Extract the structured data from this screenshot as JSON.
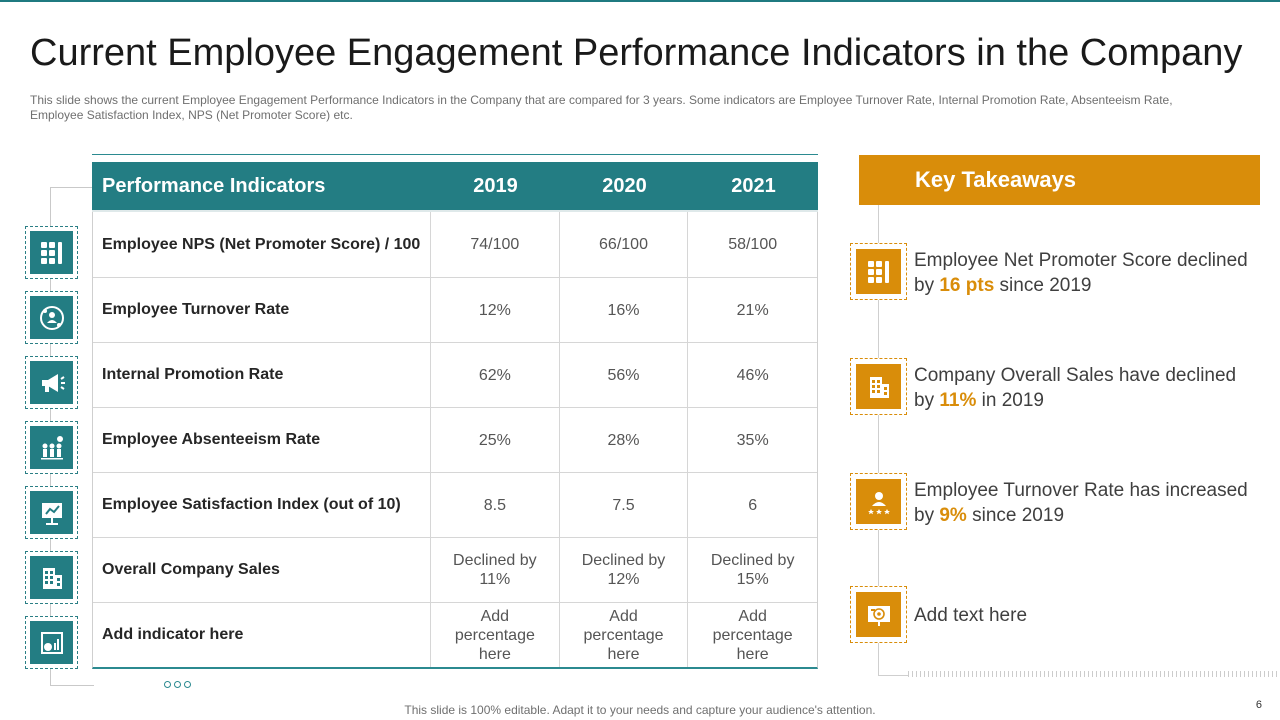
{
  "title": "Current Employee Engagement Performance Indicators in the Company",
  "subtitle": "This slide shows the current Employee Engagement Performance  Indicators in the Company that are compared for 3 years. Some indicators are Employee Turnover  Rate, Internal Promotion Rate, Absenteeism Rate, Employee Satisfaction Index, NPS (Net Promoter Score) etc.",
  "table": {
    "headers": [
      "Performance Indicators",
      "2019",
      "2020",
      "2021"
    ],
    "rows": [
      {
        "label": "Employee NPS (Net Promoter Score) / 100",
        "v2019": "74/100",
        "v2020": "66/100",
        "v2021": "58/100"
      },
      {
        "label": "Employee Turnover Rate",
        "v2019": "12%",
        "v2020": "16%",
        "v2021": "21%"
      },
      {
        "label": "Internal Promotion Rate",
        "v2019": "62%",
        "v2020": "56%",
        "v2021": "46%"
      },
      {
        "label": "Employee Absenteeism Rate",
        "v2019": "25%",
        "v2020": "28%",
        "v2021": "35%"
      },
      {
        "label": "Employee Satisfaction Index (out of 10)",
        "v2019": "8.5",
        "v2020": "7.5",
        "v2021": "6"
      },
      {
        "label": "Overall Company Sales",
        "v2019": "Declined by 11%",
        "v2020": "Declined by 12%",
        "v2021": "Declined by 15%"
      },
      {
        "label": "Add indicator here",
        "v2019": "Add percentage here",
        "v2020": "Add percentage here",
        "v2021": "Add percentage here"
      }
    ]
  },
  "left_icons": [
    "scorecard-icon",
    "people-cycle-icon",
    "megaphone-icon",
    "team-growth-icon",
    "presentation-icon",
    "building-icon",
    "dashboard-icon"
  ],
  "takeaways": {
    "heading": "Key Takeaways",
    "items": [
      {
        "icon": "scorecard-icon",
        "before": "Employee Net Promoter Score declined by ",
        "highlight": "16 pts",
        "after": " since 2019"
      },
      {
        "icon": "building-icon",
        "before": "Company Overall Sales have declined by ",
        "highlight": "11%",
        "after": " in 2019"
      },
      {
        "icon": "employee-rating-icon",
        "before": "Employee Turnover Rate has increased by ",
        "highlight": "9%",
        "after": " since 2019"
      },
      {
        "icon": "target-board-icon",
        "before": "Add text here",
        "highlight": "",
        "after": ""
      }
    ]
  },
  "colors": {
    "teal": "#237d83",
    "orange": "#d98d0a"
  },
  "footer": "This slide is 100% editable. Adapt it to your needs and capture your audience's attention.",
  "page_number": "6"
}
